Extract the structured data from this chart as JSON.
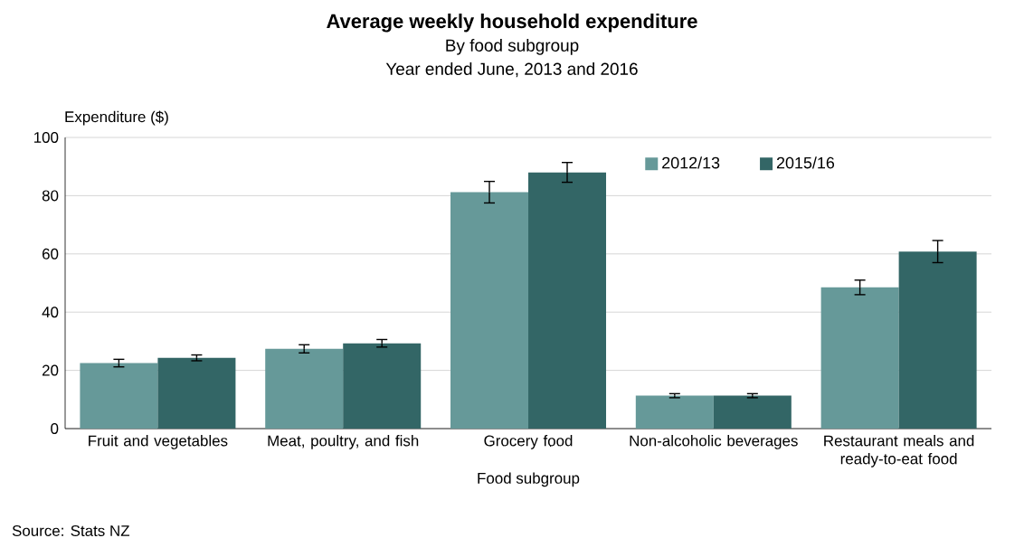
{
  "chart_data": {
    "type": "bar",
    "title": "Average weekly household expenditure",
    "subtitle": "By food  subgroup",
    "annotations": [
      "Year ended June, 2013 and 2016",
      "Source: Stats NZ"
    ],
    "xlabel": "Food subgroup",
    "ylabel": "Expenditure ($)",
    "categories": [
      "Fruit and vegetables",
      "Meat, poultry, and fish",
      "Grocery food",
      "Non-alcoholic beverages",
      "Restaurant meals and ready-to-eat food"
    ],
    "series": [
      {
        "name": "2012/13",
        "color": "#669999",
        "values": [
          22.5,
          27.4,
          81.2,
          11.3,
          48.5
        ],
        "errors": [
          1.3,
          1.4,
          3.7,
          0.7,
          2.5
        ]
      },
      {
        "name": "2015/16",
        "color": "#336666",
        "values": [
          24.3,
          29.3,
          88.0,
          11.3,
          60.8
        ],
        "errors": [
          1.0,
          1.3,
          3.4,
          0.7,
          3.8
        ]
      }
    ],
    "ylim": [
      0,
      100
    ],
    "yticks": [
      0,
      20,
      40,
      60,
      80,
      100
    ],
    "grid": "y",
    "legend": "top right"
  }
}
